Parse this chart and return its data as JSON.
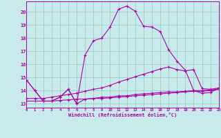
{
  "xlabel": "Windchill (Refroidissement éolien,°C)",
  "bg_color": "#c8eaea",
  "grid_color": "#9ecece",
  "line_color": "#aa00aa",
  "series1": [
    14.8,
    14.0,
    13.2,
    13.2,
    13.5,
    14.1,
    13.0,
    13.35,
    13.4,
    13.5,
    13.5,
    13.6,
    13.6,
    13.7,
    13.75,
    13.8,
    13.85,
    13.9,
    13.9,
    13.95,
    14.0,
    14.0,
    14.05,
    14.1
  ],
  "series2": [
    13.2,
    13.2,
    13.2,
    13.2,
    13.25,
    13.3,
    13.35,
    13.35,
    13.4,
    13.4,
    13.45,
    13.5,
    13.55,
    13.6,
    13.65,
    13.7,
    13.75,
    13.8,
    13.85,
    13.9,
    13.95,
    13.95,
    14.0,
    14.1
  ],
  "series3": [
    13.4,
    13.4,
    13.4,
    13.5,
    13.6,
    13.7,
    13.8,
    13.95,
    14.1,
    14.2,
    14.4,
    14.65,
    14.85,
    15.05,
    15.25,
    15.45,
    15.65,
    15.8,
    15.6,
    15.5,
    15.6,
    14.15,
    14.1,
    14.2
  ],
  "series4": [
    14.8,
    14.0,
    13.2,
    13.2,
    13.5,
    14.1,
    13.0,
    16.7,
    17.8,
    18.0,
    18.85,
    20.2,
    20.45,
    20.05,
    18.9,
    18.85,
    18.5,
    17.1,
    16.25,
    15.55,
    14.0,
    13.8,
    13.85,
    14.2
  ],
  "x_ticks": [
    0,
    1,
    2,
    3,
    4,
    5,
    6,
    7,
    8,
    9,
    10,
    11,
    12,
    13,
    14,
    15,
    16,
    17,
    18,
    19,
    20,
    21,
    22,
    23
  ],
  "y_ticks": [
    13,
    14,
    15,
    16,
    17,
    18,
    19,
    20
  ],
  "xlim": [
    0,
    23
  ],
  "ylim": [
    12.7,
    20.8
  ]
}
